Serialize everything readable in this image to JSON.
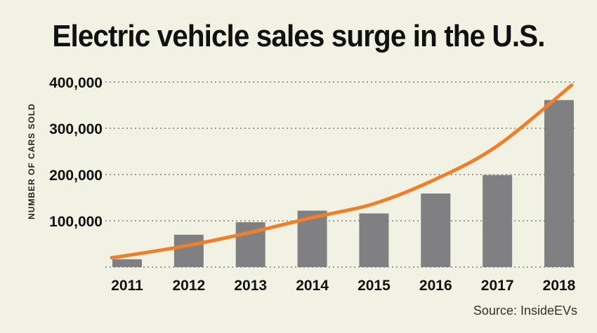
{
  "title": "Electric vehicle sales surge in the U.S.",
  "source": "Source: InsideEVs",
  "colors": {
    "background": "#f1f2e3",
    "bar": "#808083",
    "trend": "#f07f2a",
    "grid": "#9a9a9a",
    "text": "#111111"
  },
  "chart_data": {
    "type": "bar",
    "categories": [
      "2011",
      "2012",
      "2013",
      "2014",
      "2015",
      "2016",
      "2017",
      "2018"
    ],
    "values": [
      17000,
      70000,
      97000,
      122000,
      116000,
      159000,
      199000,
      361000
    ],
    "trend_values": [
      25000,
      47000,
      75000,
      107000,
      137000,
      190000,
      262000,
      372000
    ],
    "ylabel": "NUMBER OF CARS SOLD",
    "ylim": [
      0,
      400000
    ],
    "yticks": [
      100000,
      200000,
      300000,
      400000
    ],
    "ytick_labels": [
      "100,000",
      "200,000",
      "300,000",
      "400,000"
    ],
    "grid": true,
    "grid_style": "dotted",
    "legend": false
  }
}
